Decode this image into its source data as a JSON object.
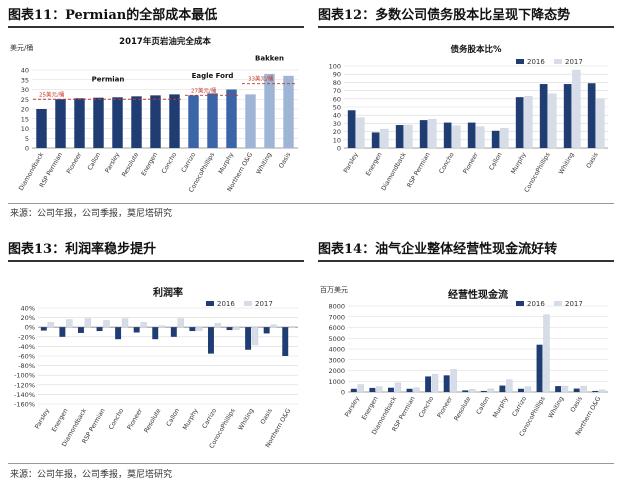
{
  "exhibits": {
    "e11": "图表11：Permian的全部成本最低",
    "e12": "图表12：多数公司债务股本比呈现下降态势",
    "e13": "图表13：利润率稳步提升",
    "e14": "图表14：油气企业整体经营性现金流好转"
  },
  "sources": {
    "top": "来源：公司年报，公司季报，莫尼塔研究",
    "bottom": "来源：公司年报，公司季报，莫尼塔研究"
  },
  "colors": {
    "c2016": "#1f3d73",
    "c2017": "#d6dde8",
    "bar11": [
      "#1f3d73",
      "#3c64a8",
      "#9fb5d6"
    ],
    "ref": "#c0392b"
  },
  "chart_data": [
    {
      "type": "bar",
      "title": "2017年页岩油完全成本",
      "ylabel": "美元/桶",
      "ylim": [
        0,
        40
      ],
      "yticks": [
        0,
        5,
        10,
        15,
        20,
        25,
        30,
        35,
        40
      ],
      "categories": [
        "Diamondback",
        "RSP Permian",
        "Pioneer",
        "Callon",
        "Parsley",
        "Resolute",
        "Energen",
        "Concho",
        "Carrizo",
        "ConocoPhillips",
        "Murphy",
        "Northern O&G",
        "Whiting",
        "Oasis"
      ],
      "values": [
        20,
        25,
        25.5,
        25.8,
        26,
        26.5,
        27,
        27.5,
        27,
        28,
        30,
        27.5,
        38,
        37
      ],
      "groups": [
        {
          "name": "Permian",
          "start": 0,
          "end": 7,
          "ref_value": 25,
          "ref_label": "25美元/桶"
        },
        {
          "name": "Eagle Ford",
          "start": 8,
          "end": 10,
          "ref_value": 27,
          "ref_label": "27美元/桶"
        },
        {
          "name": "Bakken",
          "start": 11,
          "end": 13,
          "ref_value": 33,
          "ref_label": "33美元/桶"
        }
      ],
      "grid": true
    },
    {
      "type": "bar",
      "title": "债务股本比%",
      "ylim": [
        0,
        100
      ],
      "yticks": [
        0,
        10,
        20,
        30,
        40,
        50,
        60,
        70,
        80,
        90,
        100
      ],
      "categories": [
        "Parsley",
        "Energen",
        "Diamondback",
        "RSP Permian",
        "Concho",
        "Pioneer",
        "Callon",
        "Murphy",
        "ConocoPhillips",
        "Whiting",
        "Oasis"
      ],
      "series": [
        {
          "name": "2016",
          "values": [
            46,
            19,
            28,
            34,
            31,
            31,
            21,
            62,
            78,
            78,
            79
          ]
        },
        {
          "name": "2017",
          "values": [
            37,
            23,
            28,
            35,
            27,
            26,
            24,
            63,
            66,
            95,
            60
          ]
        }
      ],
      "legend": "top-right",
      "grid": true
    },
    {
      "type": "bar",
      "title": "利润率",
      "ylim": [
        -160,
        40
      ],
      "yticks": [
        40,
        20,
        0,
        -20,
        -40,
        -60,
        -80,
        -100,
        -120,
        -140,
        -160
      ],
      "tick_suffix": "%",
      "categories": [
        "Parsley",
        "Energen",
        "Diamondback",
        "RSP Permian",
        "Concho",
        "Pioneer",
        "Resolute",
        "Callon",
        "Murphy",
        "Carrizo",
        "ConocoPhillips",
        "Whiting",
        "Oasis",
        "Northern O&G"
      ],
      "series": [
        {
          "name": "2016",
          "values": [
            -7,
            -20,
            -12,
            -8,
            -25,
            -11,
            -25,
            -20,
            -8,
            -55,
            -6,
            -47,
            -13,
            -60
          ]
        },
        {
          "name": "2017",
          "values": [
            10,
            16,
            18,
            14,
            18,
            10,
            3,
            18,
            -7,
            8,
            -5,
            -37,
            5,
            2
          ]
        }
      ],
      "legend": "top-right",
      "grid": true
    },
    {
      "type": "bar",
      "title": "经营性现金流",
      "ylabel": "百万美元",
      "ylim": [
        0,
        8000
      ],
      "yticks": [
        0,
        1000,
        2000,
        3000,
        4000,
        5000,
        6000,
        7000,
        8000
      ],
      "categories": [
        "Parsley",
        "Energen",
        "Diamondback",
        "RSP Permian",
        "Concho",
        "Pioneer",
        "Resolute",
        "Callon",
        "Murphy",
        "Carrizo",
        "ConocoPhillips",
        "Whiting",
        "Oasis",
        "Northern O&G"
      ],
      "series": [
        {
          "name": "2016",
          "values": [
            300,
            380,
            400,
            300,
            1450,
            1550,
            150,
            100,
            600,
            300,
            4400,
            550,
            320,
            100
          ]
        },
        {
          "name": "2017",
          "values": [
            700,
            500,
            850,
            400,
            1650,
            2100,
            250,
            300,
            1150,
            500,
            7200,
            550,
            550,
            200
          ]
        }
      ],
      "legend": "top-right",
      "grid": true
    }
  ]
}
